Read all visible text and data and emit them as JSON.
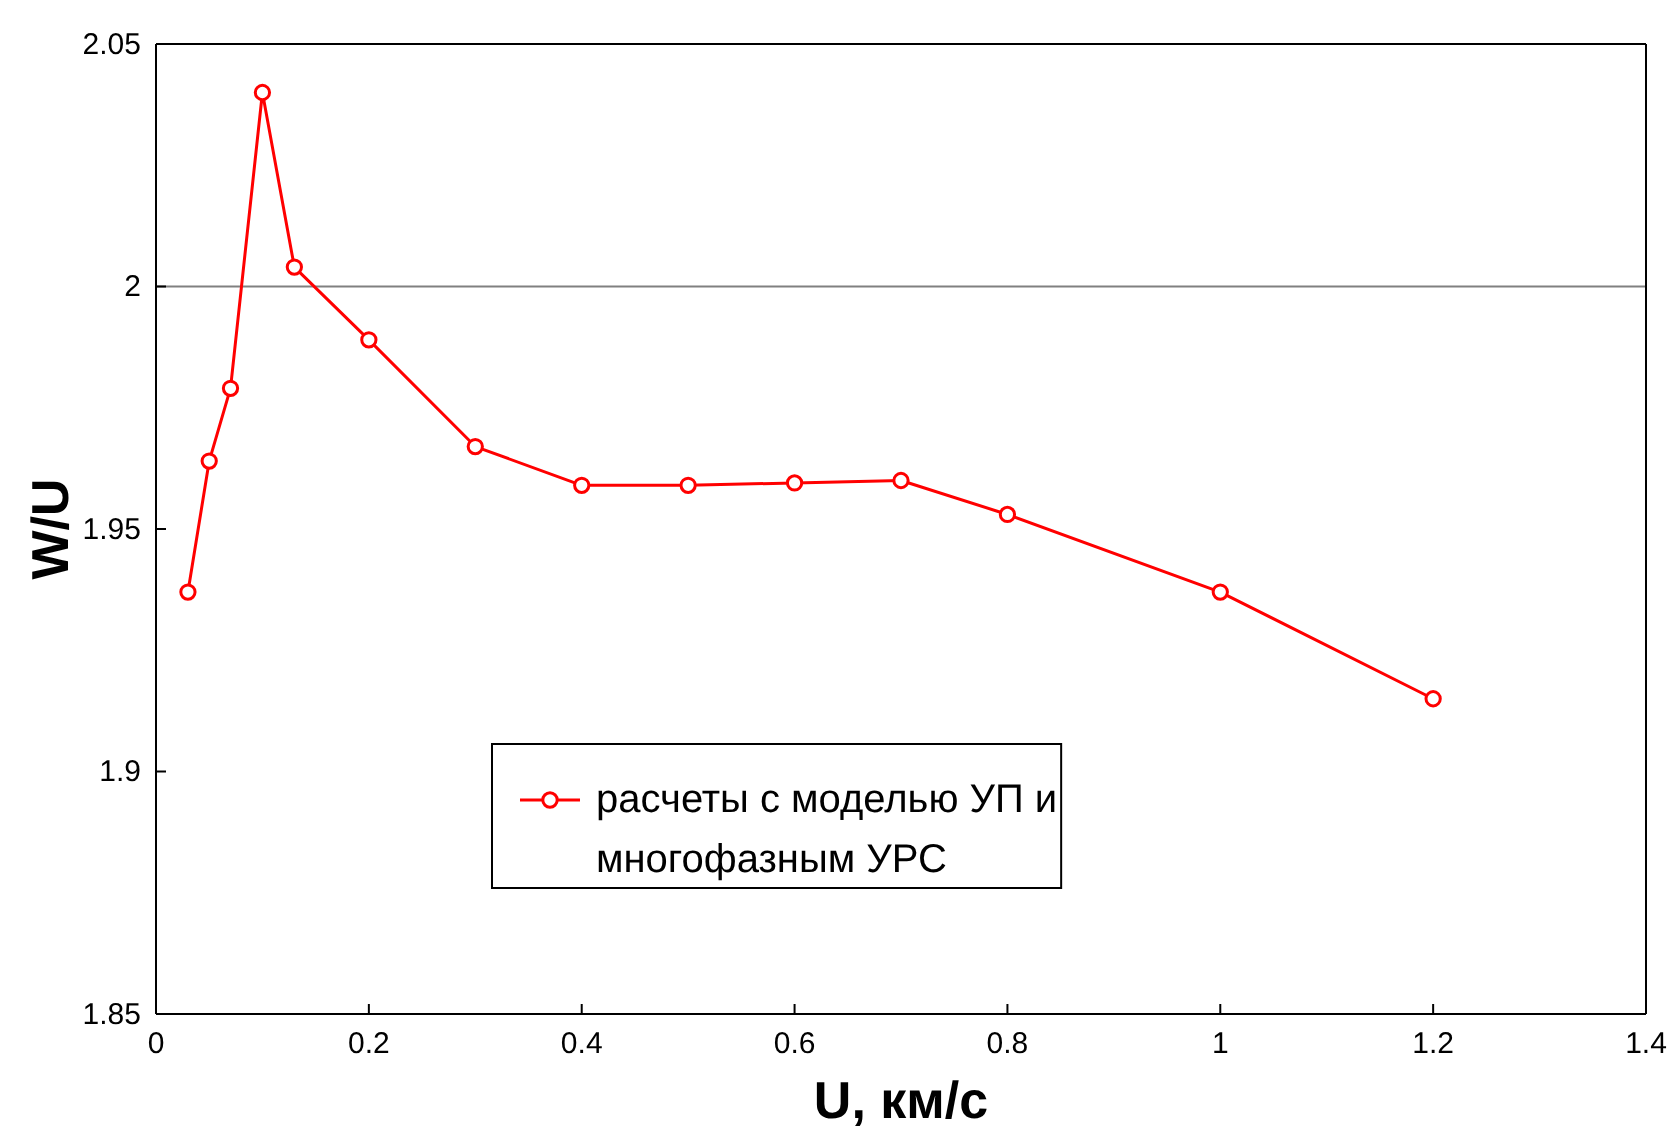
{
  "chart_data": {
    "type": "line",
    "xlabel": "U, км/с",
    "ylabel": "W/U",
    "x": [
      0.03,
      0.05,
      0.07,
      0.1,
      0.13,
      0.2,
      0.3,
      0.4,
      0.5,
      0.6,
      0.7,
      0.8,
      1.0,
      1.2
    ],
    "series": [
      {
        "name": "расчеты с моделью УП и многофазным УРС",
        "color": "#ff0000",
        "values": [
          1.937,
          1.964,
          1.979,
          2.04,
          2.004,
          1.989,
          1.967,
          1.959,
          1.959,
          1.9595,
          1.96,
          1.953,
          1.937,
          1.915
        ]
      }
    ],
    "xlim": [
      0,
      1.4
    ],
    "xticks": [
      0,
      0.2,
      0.4,
      0.6,
      0.8,
      1,
      1.2,
      1.4
    ],
    "ylim": [
      1.85,
      2.05
    ],
    "yticks": [
      1.85,
      1.9,
      1.95,
      2,
      2.05
    ],
    "ref_lines": [
      {
        "axis": "y",
        "value": 2,
        "color": "#808080"
      }
    ],
    "marker": "circle",
    "line_style": "solid",
    "legend": "bottom",
    "grid": false
  }
}
